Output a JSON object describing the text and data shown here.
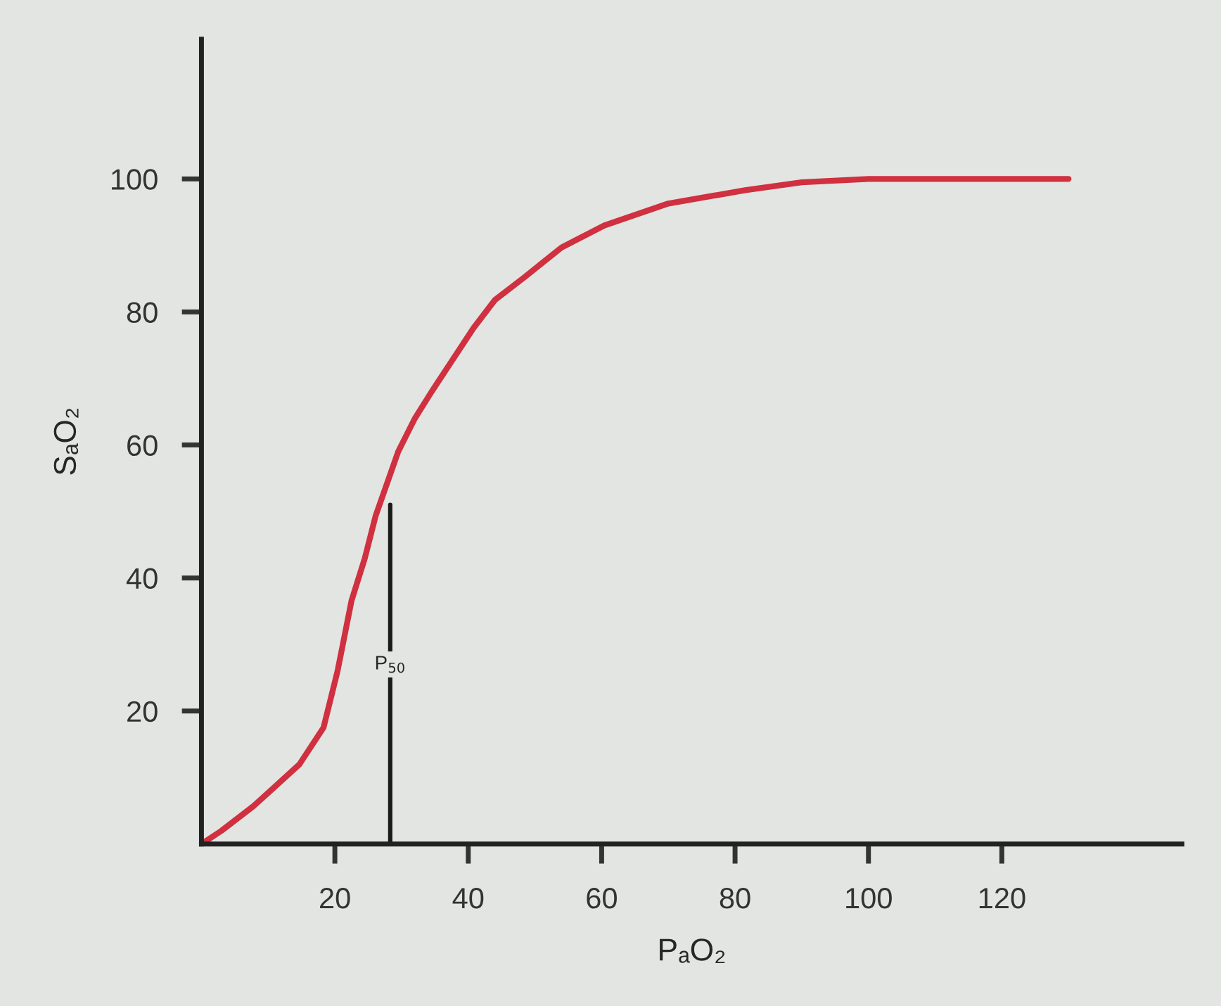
{
  "chart_data": {
    "type": "line",
    "xlabel": "PₐO₂",
    "ylabel": "SₐO₂",
    "xlim": [
      0,
      147
    ],
    "ylim": [
      0,
      121
    ],
    "xticks": [
      20,
      40,
      60,
      80,
      100,
      120
    ],
    "yticks": [
      20,
      40,
      60,
      80,
      100
    ],
    "grid": false,
    "marker": "none",
    "line_style": "solid",
    "series": [
      {
        "color": "#d0303f",
        "x": [
          0,
          3,
          7.8,
          11,
          14.7,
          18.3,
          20.4,
          22.5,
          24.5,
          26.1,
          29.5,
          32,
          34.5,
          40.8,
          44,
          48.4,
          54,
          60.4,
          70,
          81.5,
          90,
          100,
          110,
          130
        ],
        "values": [
          0,
          2,
          5.7,
          8.6,
          12,
          17.5,
          26,
          36.6,
          43,
          49.3,
          59,
          64,
          68,
          77.6,
          81.8,
          85.2,
          89.7,
          93,
          96.3,
          98.3,
          99.5,
          100,
          100,
          100
        ]
      },
      {
        "color": "#1a1a1a",
        "x": [
          28.3,
          28.3
        ],
        "values": [
          0,
          51
        ]
      }
    ],
    "annotations": [
      {
        "text": "P$_{50}$",
        "x": 28.3,
        "y": 27
      }
    ]
  }
}
